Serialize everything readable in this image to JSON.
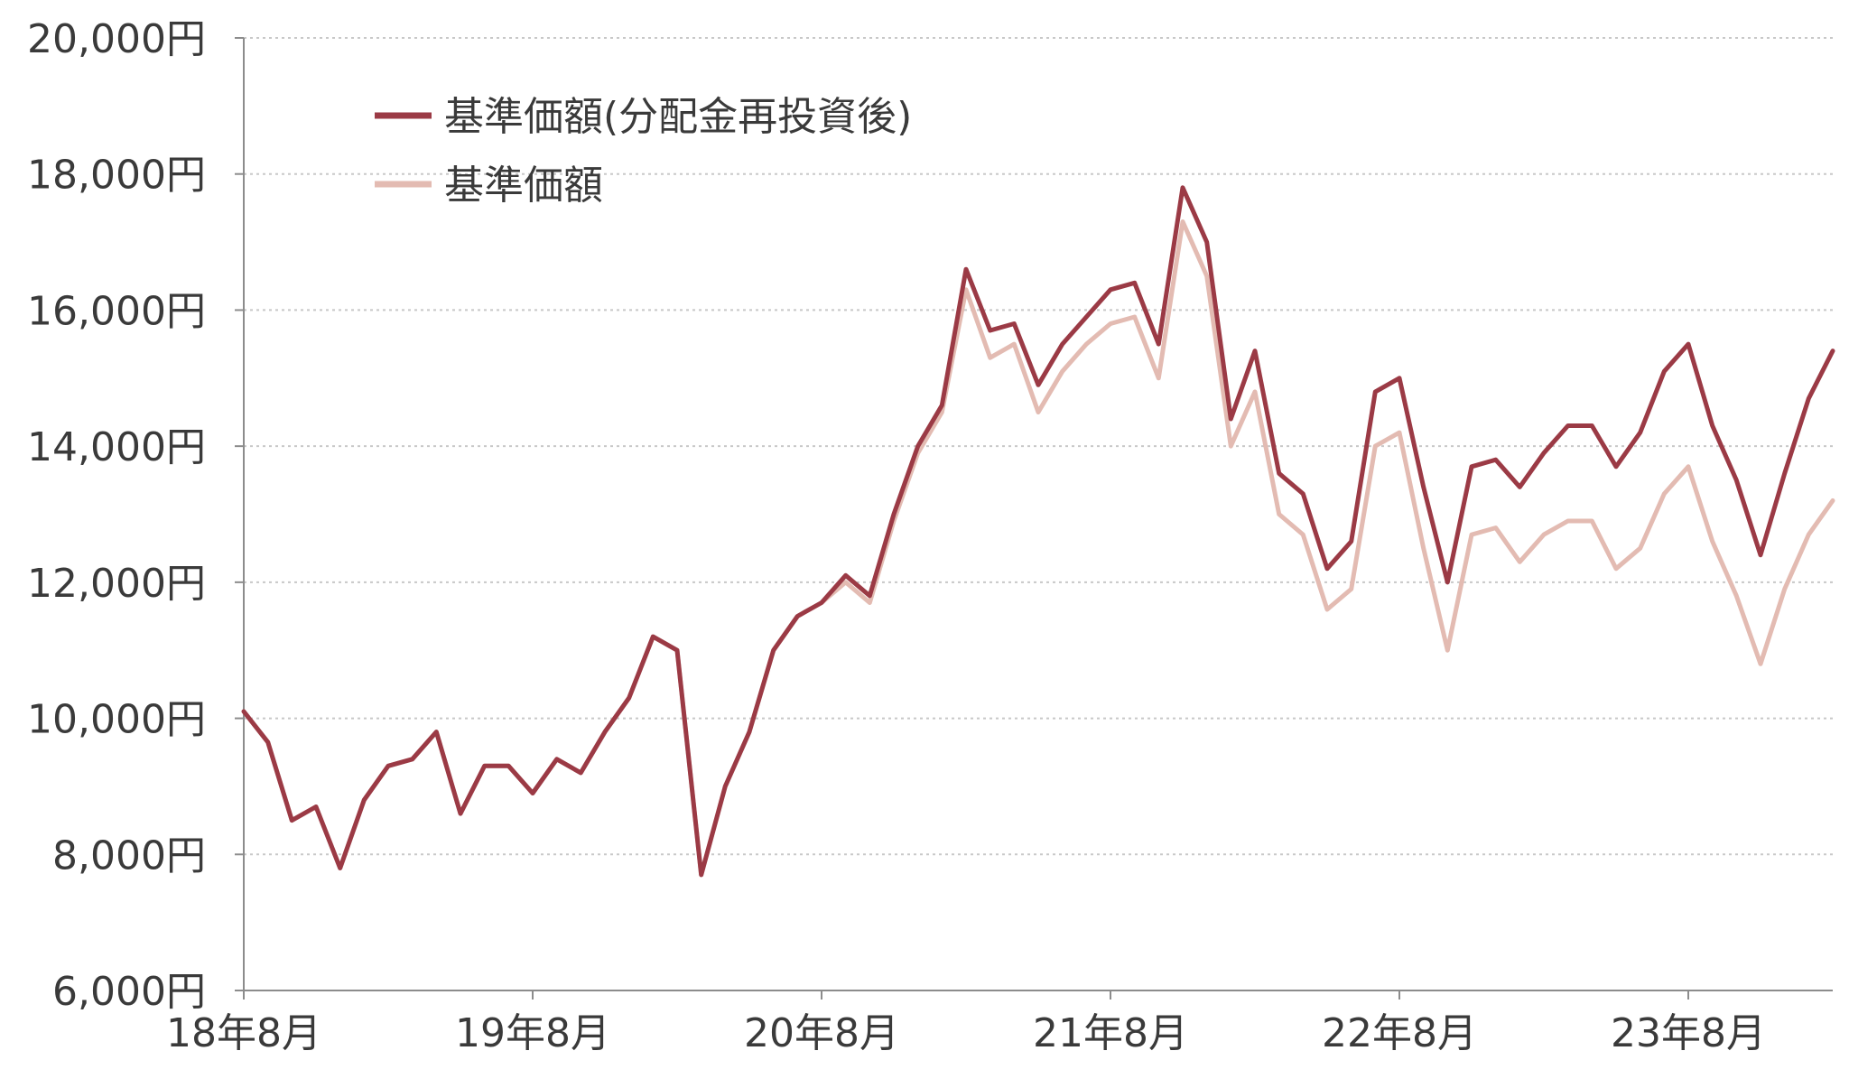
{
  "chart_data": {
    "type": "line",
    "title": "",
    "xlabel": "",
    "ylabel": "",
    "ylim": [
      6000,
      20000
    ],
    "y_ticks": [
      6000,
      8000,
      10000,
      12000,
      14000,
      16000,
      18000,
      20000
    ],
    "y_tick_labels": [
      "6,000円",
      "8,000円",
      "10,000円",
      "12,000円",
      "14,000円",
      "16,000円",
      "18,000円",
      "20,000円"
    ],
    "x_ticks": [
      "2018-08",
      "2019-08",
      "2020-08",
      "2021-08",
      "2022-08",
      "2023-08"
    ],
    "x_tick_labels": [
      "18年8月",
      "19年8月",
      "20年8月",
      "21年8月",
      "22年8月",
      "23年8月"
    ],
    "xlim": [
      "2018-08",
      "2024-02"
    ],
    "grid": "horizontal-dotted",
    "legend_position": "top-left",
    "series": [
      {
        "name": "基準価額(分配金再投資後)",
        "color": "#9b3a45",
        "x": [
          "2018-08",
          "2018-09",
          "2018-10",
          "2018-11",
          "2018-12",
          "2019-01",
          "2019-02",
          "2019-03",
          "2019-04",
          "2019-05",
          "2019-06",
          "2019-07",
          "2019-08",
          "2019-09",
          "2019-10",
          "2019-11",
          "2019-12",
          "2020-01",
          "2020-02",
          "2020-03",
          "2020-04",
          "2020-05",
          "2020-06",
          "2020-07",
          "2020-08",
          "2020-09",
          "2020-10",
          "2020-11",
          "2020-12",
          "2021-01",
          "2021-02",
          "2021-03",
          "2021-04",
          "2021-05",
          "2021-06",
          "2021-07",
          "2021-08",
          "2021-09",
          "2021-10",
          "2021-11",
          "2021-12",
          "2022-01",
          "2022-02",
          "2022-03",
          "2022-04",
          "2022-05",
          "2022-06",
          "2022-07",
          "2022-08",
          "2022-09",
          "2022-10",
          "2022-11",
          "2022-12",
          "2023-01",
          "2023-02",
          "2023-03",
          "2023-04",
          "2023-05",
          "2023-06",
          "2023-07",
          "2023-08",
          "2023-09",
          "2023-10",
          "2023-11",
          "2023-12",
          "2024-01",
          "2024-02"
        ],
        "values": [
          10100,
          9650,
          8500,
          8700,
          7800,
          8800,
          9300,
          9400,
          9800,
          8600,
          9300,
          9300,
          8900,
          9400,
          9200,
          9800,
          10300,
          11200,
          11000,
          7700,
          9000,
          9800,
          11000,
          11500,
          11700,
          12100,
          11800,
          13000,
          14000,
          14600,
          16600,
          15700,
          15800,
          14900,
          15500,
          15900,
          16300,
          16400,
          15500,
          17800,
          17000,
          14400,
          15400,
          13600,
          13300,
          12200,
          12600,
          14800,
          15000,
          13400,
          12000,
          13700,
          13800,
          13400,
          13900,
          14300,
          14300,
          13700,
          14200,
          15100,
          15500,
          14300,
          13500,
          12400,
          13600,
          14700,
          15400
        ]
      },
      {
        "name": "基準価額",
        "color": "#e3bbb2",
        "x": [
          "2018-08",
          "2018-09",
          "2018-10",
          "2018-11",
          "2018-12",
          "2019-01",
          "2019-02",
          "2019-03",
          "2019-04",
          "2019-05",
          "2019-06",
          "2019-07",
          "2019-08",
          "2019-09",
          "2019-10",
          "2019-11",
          "2019-12",
          "2020-01",
          "2020-02",
          "2020-03",
          "2020-04",
          "2020-05",
          "2020-06",
          "2020-07",
          "2020-08",
          "2020-09",
          "2020-10",
          "2020-11",
          "2020-12",
          "2021-01",
          "2021-02",
          "2021-03",
          "2021-04",
          "2021-05",
          "2021-06",
          "2021-07",
          "2021-08",
          "2021-09",
          "2021-10",
          "2021-11",
          "2021-12",
          "2022-01",
          "2022-02",
          "2022-03",
          "2022-04",
          "2022-05",
          "2022-06",
          "2022-07",
          "2022-08",
          "2022-09",
          "2022-10",
          "2022-11",
          "2022-12",
          "2023-01",
          "2023-02",
          "2023-03",
          "2023-04",
          "2023-05",
          "2023-06",
          "2023-07",
          "2023-08",
          "2023-09",
          "2023-10",
          "2023-11",
          "2023-12",
          "2024-01",
          "2024-02"
        ],
        "values": [
          10100,
          9650,
          8500,
          8700,
          7800,
          8800,
          9300,
          9400,
          9800,
          8600,
          9300,
          9300,
          8900,
          9400,
          9200,
          9800,
          10300,
          11200,
          11000,
          7700,
          9000,
          9800,
          11000,
          11500,
          11700,
          12000,
          11700,
          12900,
          13900,
          14500,
          16300,
          15300,
          15500,
          14500,
          15100,
          15500,
          15800,
          15900,
          15000,
          17300,
          16500,
          14000,
          14800,
          13000,
          12700,
          11600,
          11900,
          14000,
          14200,
          12500,
          11000,
          12700,
          12800,
          12300,
          12700,
          12900,
          12900,
          12200,
          12500,
          13300,
          13700,
          12600,
          11800,
          10800,
          11900,
          12700,
          13200
        ]
      }
    ]
  }
}
